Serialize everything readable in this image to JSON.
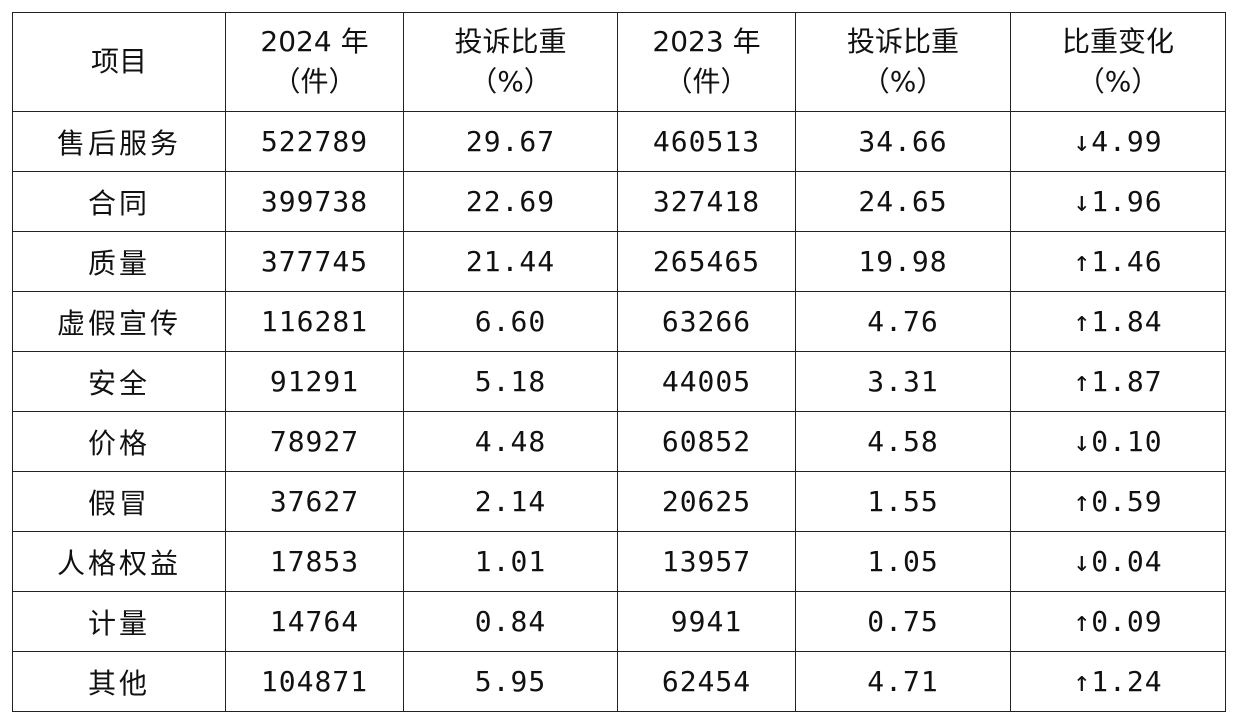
{
  "table": {
    "header": [
      [
        "项目"
      ],
      [
        "2024 年",
        "（件）"
      ],
      [
        "投诉比重",
        "（%）"
      ],
      [
        "2023 年",
        "（件）"
      ],
      [
        "投诉比重",
        "（%）"
      ],
      [
        "比重变化",
        "（%）"
      ]
    ],
    "rows": [
      [
        "售后服务",
        "522789",
        "29.67",
        "460513",
        "34.66",
        "↓4.99"
      ],
      [
        "合同",
        "399738",
        "22.69",
        "327418",
        "24.65",
        "↓1.96"
      ],
      [
        "质量",
        "377745",
        "21.44",
        "265465",
        "19.98",
        "↑1.46"
      ],
      [
        "虚假宣传",
        "116281",
        "6.60",
        "63266",
        "4.76",
        "↑1.84"
      ],
      [
        "安全",
        "91291",
        "5.18",
        "44005",
        "3.31",
        "↑1.87"
      ],
      [
        "价格",
        "78927",
        "4.48",
        "60852",
        "4.58",
        "↓0.10"
      ],
      [
        "假冒",
        "37627",
        "2.14",
        "20625",
        "1.55",
        "↑0.59"
      ],
      [
        "人格权益",
        "17853",
        "1.01",
        "13957",
        "1.05",
        "↓0.04"
      ],
      [
        "计量",
        "14764",
        "0.84",
        "9941",
        "0.75",
        "↑0.09"
      ],
      [
        "其他",
        "104871",
        "5.95",
        "62454",
        "4.71",
        "↑1.24"
      ]
    ]
  }
}
